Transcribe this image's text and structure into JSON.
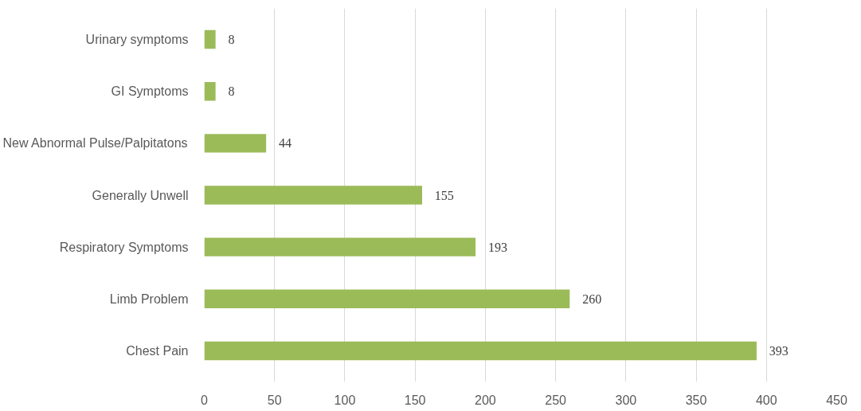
{
  "chart_data": {
    "type": "bar",
    "orientation": "horizontal",
    "categories": [
      "Urinary symptoms",
      "GI Symptoms",
      "New Abnormal Pulse/Palpitatons",
      "Generally Unwell",
      "Respiratory Symptoms",
      "Limb Problem",
      "Chest Pain"
    ],
    "values": [
      8,
      8,
      44,
      155,
      193,
      260,
      393
    ],
    "color": "#9bbb59",
    "xlim": [
      0,
      450
    ],
    "xticks": [
      0,
      50,
      100,
      150,
      200,
      250,
      300,
      350,
      400,
      450
    ],
    "grid": "x",
    "data_labels": true
  }
}
